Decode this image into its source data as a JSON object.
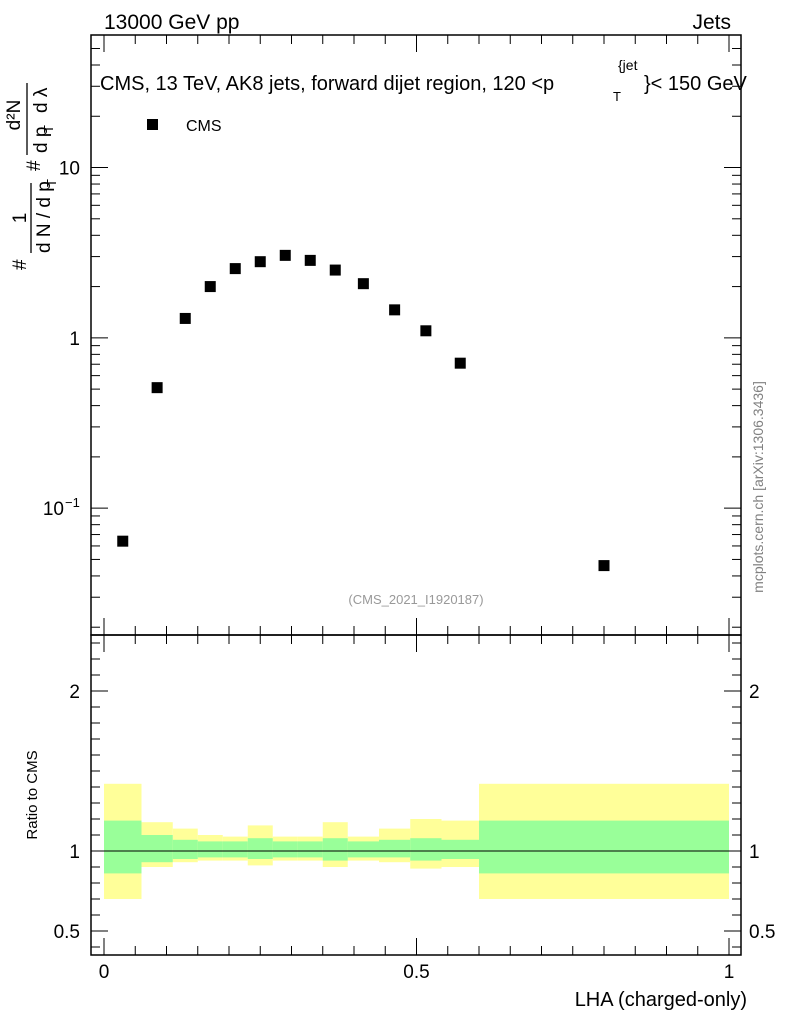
{
  "header": {
    "left": "13000 GeV pp",
    "right": "Jets"
  },
  "side_note": "mcplots.cern.ch [arXiv:1306.3436]",
  "chart_data": [
    {
      "type": "scatter",
      "panel": "main",
      "title": "CMS, 13 TeV, AK8 jets, forward dijet region, 120 <p_T^{jet}< 150 GeV",
      "title_parts": {
        "before": "CMS, 13 TeV, AK8 jets, forward dijet region, 120 <p",
        "sup": "{jet",
        "sub": "T",
        "after": "}< 150 GeV"
      },
      "ylabel_parts": {
        "hash1": "#",
        "one": "1",
        "denominator": "d N / d p",
        "sub": "T",
        "hash2": "#",
        "numerator": "d²N",
        "denominator2": "d p",
        "sub2": "T",
        "dlambda": "d λ"
      },
      "yscale": "log",
      "ylim": [
        0.018,
        60
      ],
      "xlim": [
        0,
        1
      ],
      "yticks": [
        {
          "value": 10,
          "label": "10"
        },
        {
          "value": 1,
          "label": "1"
        },
        {
          "value": 0.1,
          "label": "10",
          "exp": "−1"
        }
      ],
      "legend": [
        {
          "name": "CMS",
          "marker": "square"
        }
      ],
      "legend_position": "top-left",
      "watermark": "(CMS_2021_I1920187)",
      "series": [
        {
          "name": "CMS",
          "x": [
            0.03,
            0.085,
            0.13,
            0.17,
            0.21,
            0.25,
            0.29,
            0.33,
            0.37,
            0.415,
            0.465,
            0.515,
            0.57,
            0.8
          ],
          "y": [
            0.064,
            0.51,
            1.3,
            2.0,
            2.55,
            2.8,
            3.05,
            2.85,
            2.5,
            2.08,
            1.46,
            1.1,
            0.71,
            0.046
          ]
        }
      ]
    },
    {
      "type": "area",
      "panel": "ratio",
      "ylabel": "Ratio to CMS",
      "xlabel": "LHA (charged-only)",
      "xlim": [
        0,
        1
      ],
      "ylim": [
        0.35,
        2.35
      ],
      "yticks": [
        {
          "value": 0.5,
          "label": "0.5"
        },
        {
          "value": 1,
          "label": "1"
        },
        {
          "value": 2,
          "label": "2"
        }
      ],
      "xticks": [
        {
          "value": 0,
          "label": "0"
        },
        {
          "value": 0.5,
          "label": "0.5"
        },
        {
          "value": 1,
          "label": "1"
        }
      ],
      "reference_line": 1,
      "bins": [
        {
          "lo": 0.0,
          "hi": 0.06,
          "inner": [
            0.86,
            1.19
          ],
          "outer": [
            0.7,
            1.42
          ]
        },
        {
          "lo": 0.06,
          "hi": 0.11,
          "inner": [
            0.93,
            1.1
          ],
          "outer": [
            0.9,
            1.18
          ]
        },
        {
          "lo": 0.11,
          "hi": 0.15,
          "inner": [
            0.95,
            1.07
          ],
          "outer": [
            0.93,
            1.14
          ]
        },
        {
          "lo": 0.15,
          "hi": 0.19,
          "inner": [
            0.96,
            1.06
          ],
          "outer": [
            0.94,
            1.1
          ]
        },
        {
          "lo": 0.19,
          "hi": 0.23,
          "inner": [
            0.96,
            1.06
          ],
          "outer": [
            0.94,
            1.09
          ]
        },
        {
          "lo": 0.23,
          "hi": 0.27,
          "inner": [
            0.95,
            1.08
          ],
          "outer": [
            0.91,
            1.16
          ]
        },
        {
          "lo": 0.27,
          "hi": 0.31,
          "inner": [
            0.96,
            1.06
          ],
          "outer": [
            0.94,
            1.09
          ]
        },
        {
          "lo": 0.31,
          "hi": 0.35,
          "inner": [
            0.96,
            1.06
          ],
          "outer": [
            0.94,
            1.09
          ]
        },
        {
          "lo": 0.35,
          "hi": 0.39,
          "inner": [
            0.94,
            1.08
          ],
          "outer": [
            0.9,
            1.18
          ]
        },
        {
          "lo": 0.39,
          "hi": 0.44,
          "inner": [
            0.96,
            1.06
          ],
          "outer": [
            0.94,
            1.09
          ]
        },
        {
          "lo": 0.44,
          "hi": 0.49,
          "inner": [
            0.96,
            1.07
          ],
          "outer": [
            0.93,
            1.14
          ]
        },
        {
          "lo": 0.49,
          "hi": 0.54,
          "inner": [
            0.94,
            1.08
          ],
          "outer": [
            0.89,
            1.2
          ]
        },
        {
          "lo": 0.54,
          "hi": 0.6,
          "inner": [
            0.95,
            1.07
          ],
          "outer": [
            0.9,
            1.19
          ]
        },
        {
          "lo": 0.6,
          "hi": 1.0,
          "inner": [
            0.86,
            1.19
          ],
          "outer": [
            0.7,
            1.42
          ]
        }
      ]
    }
  ],
  "colors": {
    "inner_band": "#99ff99",
    "outer_band": "#ffff99",
    "marker": "#000000",
    "watermark": "#999999",
    "side_note": "#808080"
  }
}
